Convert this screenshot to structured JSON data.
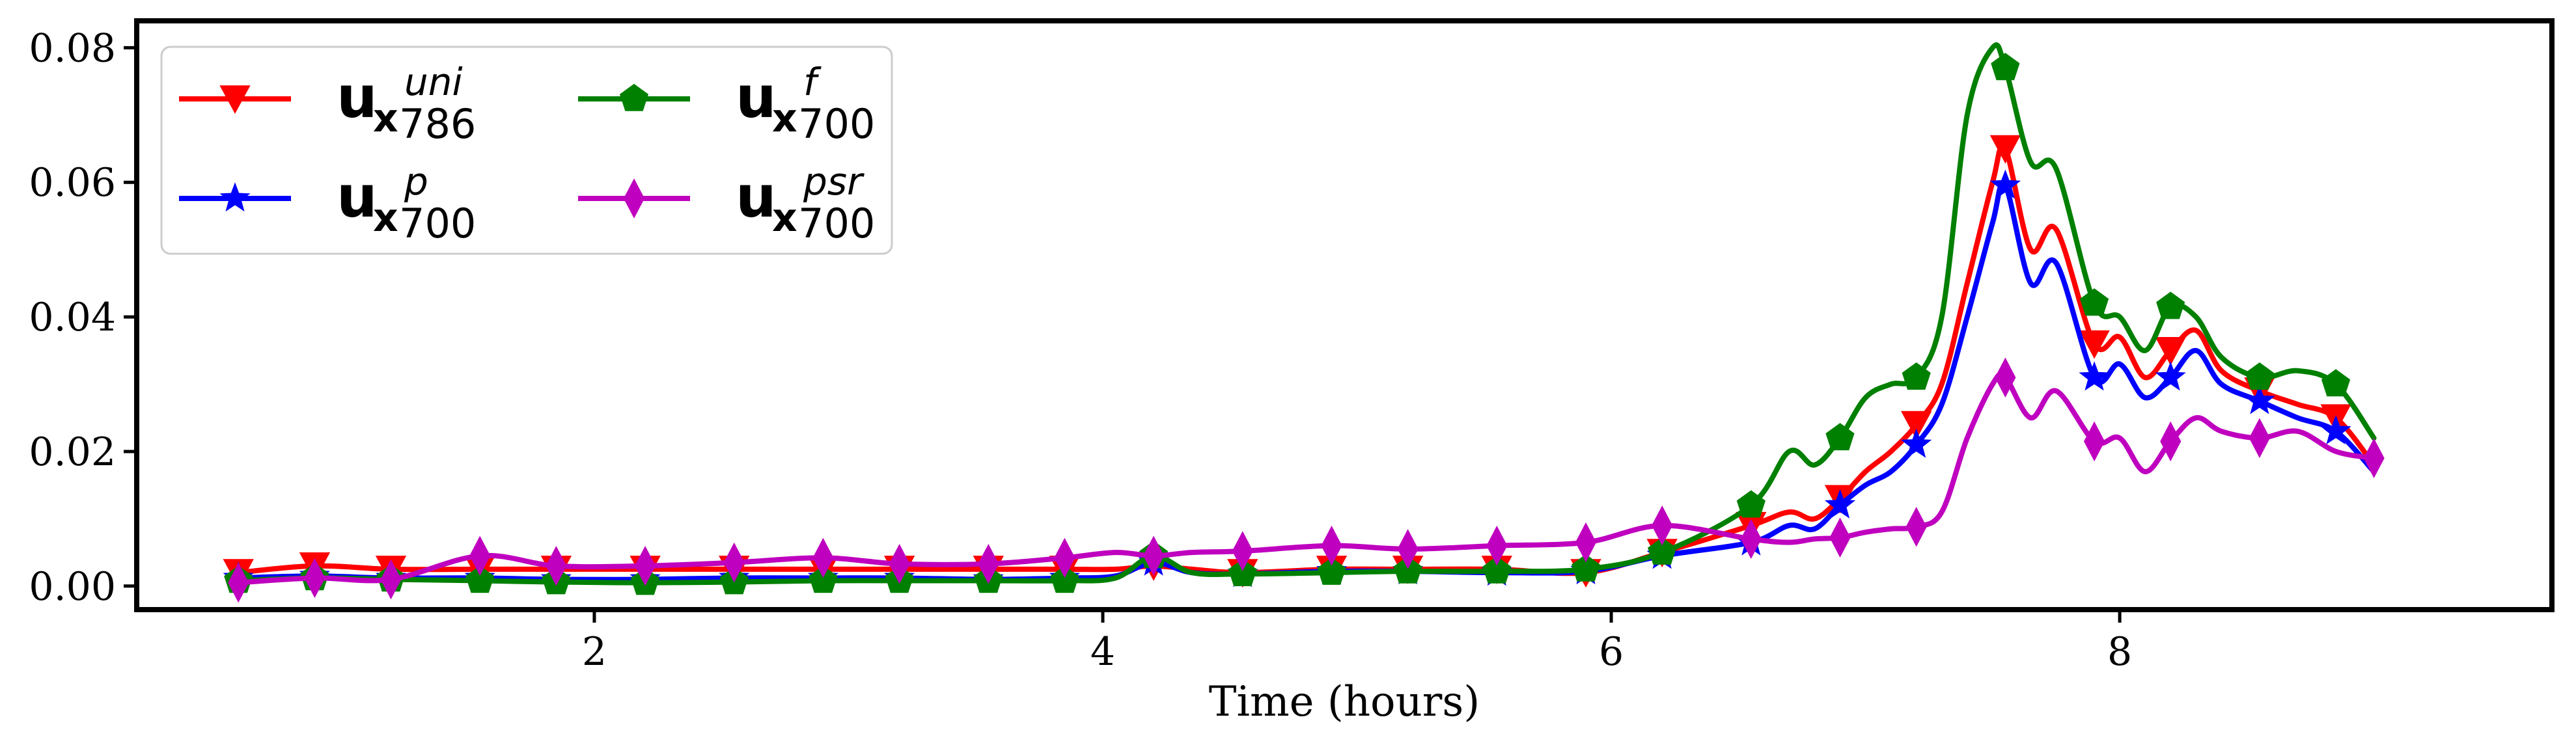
{
  "chart_data": {
    "type": "line",
    "title": "",
    "xlabel": "Time (hours)",
    "ylabel": "",
    "xlim": [
      0.2,
      9.7
    ],
    "ylim": [
      -0.0035,
      0.084
    ],
    "xticks": [
      2,
      4,
      6,
      8
    ],
    "xtick_labels": [
      "2",
      "4",
      "6",
      "8"
    ],
    "yticks": [
      0.0,
      0.02,
      0.04,
      0.06,
      0.08
    ],
    "ytick_labels": [
      "0.00",
      "0.02",
      "0.04",
      "0.06",
      "0.08"
    ],
    "grid": false,
    "legend_position": "top-left",
    "series": [
      {
        "name": "u_x 786 uni",
        "legend": {
          "base": "u",
          "sub_bold": "x",
          "sub": "786",
          "sup": "uni"
        },
        "color": "#ff0000",
        "marker": "triangle-down",
        "x": [
          0.6,
          0.9,
          1.2,
          1.55,
          1.85,
          2.2,
          2.55,
          2.9,
          3.2,
          3.55,
          3.85,
          4.05,
          4.2,
          4.35,
          4.55,
          4.9,
          5.2,
          5.55,
          5.9,
          6.2,
          6.55,
          6.7,
          6.8,
          6.9,
          7.0,
          7.1,
          7.2,
          7.3,
          7.4,
          7.5,
          7.55,
          7.65,
          7.75,
          7.9,
          8.0,
          8.1,
          8.2,
          8.3,
          8.4,
          8.55,
          8.7,
          8.85,
          9.0
        ],
        "y": [
          0.002,
          0.003,
          0.0025,
          0.0025,
          0.0025,
          0.0025,
          0.0025,
          0.0025,
          0.0025,
          0.0025,
          0.0025,
          0.0025,
          0.003,
          0.0025,
          0.002,
          0.0025,
          0.0025,
          0.0025,
          0.002,
          0.005,
          0.009,
          0.011,
          0.01,
          0.013,
          0.017,
          0.02,
          0.024,
          0.03,
          0.045,
          0.06,
          0.065,
          0.05,
          0.053,
          0.036,
          0.037,
          0.031,
          0.035,
          0.038,
          0.032,
          0.029,
          0.027,
          0.025,
          0.018
        ],
        "marker_indices": [
          0,
          1,
          2,
          3,
          4,
          5,
          6,
          7,
          8,
          9,
          10,
          12,
          14,
          15,
          16,
          17,
          18,
          19,
          20,
          23,
          26,
          30,
          33,
          36,
          39,
          41
        ]
      },
      {
        "name": "u_x 700 p",
        "legend": {
          "base": "u",
          "sub_bold": "x",
          "sub": "700",
          "sup": "p"
        },
        "color": "#0000ff",
        "marker": "star",
        "x": [
          0.6,
          0.9,
          1.2,
          1.55,
          1.85,
          2.2,
          2.55,
          2.9,
          3.2,
          3.55,
          3.85,
          4.05,
          4.2,
          4.35,
          4.55,
          4.9,
          5.2,
          5.55,
          5.9,
          6.2,
          6.55,
          6.7,
          6.8,
          6.9,
          7.0,
          7.1,
          7.2,
          7.3,
          7.4,
          7.5,
          7.55,
          7.65,
          7.75,
          7.9,
          8.0,
          8.1,
          8.2,
          8.3,
          8.4,
          8.55,
          8.7,
          8.85,
          9.0
        ],
        "y": [
          0.0012,
          0.0015,
          0.0012,
          0.0012,
          0.001,
          0.001,
          0.0012,
          0.0012,
          0.0012,
          0.001,
          0.0012,
          0.0015,
          0.0035,
          0.002,
          0.0018,
          0.0022,
          0.0022,
          0.002,
          0.0022,
          0.0045,
          0.0065,
          0.009,
          0.0085,
          0.012,
          0.015,
          0.017,
          0.021,
          0.027,
          0.04,
          0.054,
          0.0595,
          0.045,
          0.048,
          0.031,
          0.033,
          0.028,
          0.031,
          0.035,
          0.03,
          0.0275,
          0.025,
          0.023,
          0.017
        ],
        "marker_indices": [
          0,
          1,
          2,
          3,
          4,
          5,
          6,
          7,
          8,
          9,
          10,
          12,
          14,
          15,
          16,
          17,
          18,
          19,
          20,
          23,
          26,
          30,
          33,
          36,
          39,
          41
        ]
      },
      {
        "name": "u_x 700 f",
        "legend": {
          "base": "u",
          "sub_bold": "x",
          "sub": "700",
          "sup": "f"
        },
        "color": "#008000",
        "marker": "pentagon",
        "x": [
          0.6,
          0.9,
          1.2,
          1.55,
          1.85,
          2.2,
          2.55,
          2.9,
          3.2,
          3.55,
          3.85,
          4.05,
          4.2,
          4.35,
          4.55,
          4.9,
          5.2,
          5.55,
          5.9,
          6.2,
          6.55,
          6.7,
          6.8,
          6.9,
          7.0,
          7.1,
          7.2,
          7.3,
          7.4,
          7.5,
          7.55,
          7.65,
          7.75,
          7.9,
          8.0,
          8.1,
          8.2,
          8.3,
          8.4,
          8.55,
          8.7,
          8.85,
          9.0
        ],
        "y": [
          0.0008,
          0.0012,
          0.001,
          0.0008,
          0.0006,
          0.0005,
          0.0006,
          0.0008,
          0.0008,
          0.0008,
          0.0008,
          0.0012,
          0.0045,
          0.002,
          0.0018,
          0.002,
          0.0022,
          0.0022,
          0.0025,
          0.005,
          0.012,
          0.02,
          0.018,
          0.022,
          0.028,
          0.03,
          0.031,
          0.04,
          0.07,
          0.08,
          0.077,
          0.063,
          0.062,
          0.042,
          0.04,
          0.035,
          0.0415,
          0.04,
          0.034,
          0.031,
          0.032,
          0.03,
          0.022
        ],
        "marker_indices": [
          0,
          1,
          2,
          3,
          4,
          5,
          6,
          7,
          8,
          9,
          10,
          12,
          14,
          15,
          16,
          17,
          18,
          19,
          20,
          23,
          26,
          30,
          33,
          36,
          39,
          41
        ]
      },
      {
        "name": "u_x 700 psr",
        "legend": {
          "base": "u",
          "sub_bold": "x",
          "sub": "700",
          "sup": "psr"
        },
        "color": "#bf00bf",
        "marker": "thin-diamond",
        "x": [
          0.6,
          0.9,
          1.2,
          1.55,
          1.85,
          2.2,
          2.55,
          2.9,
          3.2,
          3.55,
          3.85,
          4.05,
          4.2,
          4.35,
          4.55,
          4.9,
          5.2,
          5.55,
          5.9,
          6.2,
          6.55,
          6.7,
          6.8,
          6.9,
          7.0,
          7.1,
          7.2,
          7.3,
          7.4,
          7.5,
          7.55,
          7.65,
          7.75,
          7.9,
          8.0,
          8.1,
          8.2,
          8.3,
          8.4,
          8.55,
          8.7,
          8.85,
          9.0
        ],
        "y": [
          0.0005,
          0.0012,
          0.001,
          0.0045,
          0.003,
          0.003,
          0.0035,
          0.0042,
          0.0033,
          0.0033,
          0.0042,
          0.005,
          0.0045,
          0.005,
          0.0052,
          0.006,
          0.0055,
          0.006,
          0.0065,
          0.009,
          0.007,
          0.0065,
          0.007,
          0.0072,
          0.008,
          0.0085,
          0.0088,
          0.011,
          0.022,
          0.03,
          0.031,
          0.025,
          0.029,
          0.0215,
          0.022,
          0.017,
          0.0215,
          0.025,
          0.023,
          0.022,
          0.023,
          0.02,
          0.019
        ],
        "marker_indices": [
          0,
          1,
          2,
          3,
          4,
          5,
          6,
          7,
          8,
          9,
          10,
          12,
          14,
          15,
          16,
          17,
          18,
          19,
          20,
          23,
          26,
          30,
          33,
          36,
          39,
          42
        ]
      }
    ]
  }
}
